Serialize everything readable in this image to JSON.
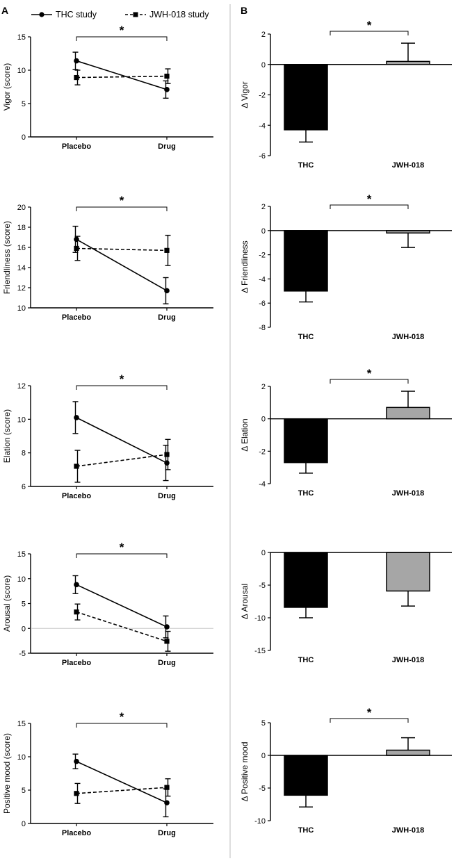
{
  "panel_labels": {
    "a": "A",
    "b": "B"
  },
  "legend": {
    "thc": "THC study",
    "jwh": "JWH-018 study"
  },
  "significance_marker": "*",
  "colors": {
    "thc_bar": "#000000",
    "jwh_bar": "#a6a6a6",
    "divider": "#bdbdbd",
    "zero_line": "#c8c8c8"
  },
  "chart_data": [
    {
      "type": "line",
      "ylabel": "Vigor (score)",
      "categories": [
        "Placebo",
        "Drug"
      ],
      "ylim": [
        0,
        15
      ],
      "yticks": [
        0,
        5,
        10,
        15
      ],
      "series": [
        {
          "name": "THC study",
          "values": [
            11.4,
            7.1
          ],
          "errors": [
            1.3,
            1.3
          ]
        },
        {
          "name": "JWH-018 study",
          "values": [
            8.9,
            9.1
          ],
          "errors": [
            1.1,
            1.1
          ]
        }
      ],
      "significance": "*"
    },
    {
      "type": "line",
      "ylabel": "Friendliness (score)",
      "categories": [
        "Placebo",
        "Drug"
      ],
      "ylim": [
        10,
        20
      ],
      "yticks": [
        10,
        12,
        14,
        16,
        18,
        20
      ],
      "series": [
        {
          "name": "THC study",
          "values": [
            16.8,
            11.7
          ],
          "errors": [
            1.3,
            1.3
          ]
        },
        {
          "name": "JWH-018 study",
          "values": [
            15.9,
            15.7
          ],
          "errors": [
            1.2,
            1.5
          ]
        }
      ],
      "significance": "*"
    },
    {
      "type": "line",
      "ylabel": "Elation (score)",
      "categories": [
        "Placebo",
        "Drug"
      ],
      "ylim": [
        6,
        12
      ],
      "yticks": [
        6,
        8,
        10,
        12
      ],
      "series": [
        {
          "name": "THC study",
          "values": [
            10.1,
            7.4
          ],
          "errors": [
            0.95,
            1.05
          ]
        },
        {
          "name": "JWH-018 study",
          "values": [
            7.2,
            7.9
          ],
          "errors": [
            0.95,
            0.9
          ]
        }
      ],
      "significance": "*"
    },
    {
      "type": "line",
      "ylabel": "Arousal (score)",
      "categories": [
        "Placebo",
        "Drug"
      ],
      "ylim": [
        -5,
        15
      ],
      "yticks": [
        -5,
        0,
        5,
        10,
        15
      ],
      "zero_line": true,
      "series": [
        {
          "name": "THC study",
          "values": [
            8.8,
            0.3
          ],
          "errors": [
            1.8,
            2.2
          ]
        },
        {
          "name": "JWH-018 study",
          "values": [
            3.3,
            -2.6
          ],
          "errors": [
            1.6,
            2.0
          ]
        }
      ],
      "significance": "*"
    },
    {
      "type": "line",
      "ylabel": "Positive mood (score)",
      "categories": [
        "Placebo",
        "Drug"
      ],
      "ylim": [
        0,
        15
      ],
      "yticks": [
        0,
        5,
        10,
        15
      ],
      "series": [
        {
          "name": "THC study",
          "values": [
            9.3,
            3.1
          ],
          "errors": [
            1.1,
            2.1
          ]
        },
        {
          "name": "JWH-018 study",
          "values": [
            4.5,
            5.4
          ],
          "errors": [
            1.5,
            1.3
          ]
        }
      ],
      "significance": "*"
    },
    {
      "type": "bar",
      "ylabel": "Δ Vigor",
      "categories": [
        "THC",
        "JWH-018"
      ],
      "values": [
        -4.3,
        0.2
      ],
      "errors": [
        0.8,
        1.2
      ],
      "ylim": [
        -6,
        2
      ],
      "yticks": [
        -6,
        -4,
        -2,
        0,
        2
      ],
      "significance": "*"
    },
    {
      "type": "bar",
      "ylabel": "Δ Friendliness",
      "categories": [
        "THC",
        "JWH-018"
      ],
      "values": [
        -5.0,
        -0.2
      ],
      "errors": [
        0.9,
        1.2
      ],
      "ylim": [
        -8,
        2
      ],
      "yticks": [
        -8,
        -6,
        -4,
        -2,
        0,
        2
      ],
      "significance": "*"
    },
    {
      "type": "bar",
      "ylabel": "Δ Elation",
      "categories": [
        "THC",
        "JWH-018"
      ],
      "values": [
        -2.7,
        0.7
      ],
      "errors": [
        0.65,
        1.0
      ],
      "ylim": [
        -4,
        2
      ],
      "yticks": [
        -4,
        -2,
        0,
        2
      ],
      "significance": "*"
    },
    {
      "type": "bar",
      "ylabel": "Δ Arousal",
      "categories": [
        "THC",
        "JWH-018"
      ],
      "values": [
        -8.4,
        -5.9
      ],
      "errors": [
        1.6,
        2.3
      ],
      "ylim": [
        -15,
        0
      ],
      "yticks": [
        -15,
        -10,
        -5,
        0
      ],
      "significance": null
    },
    {
      "type": "bar",
      "ylabel": "Δ Positive mood",
      "categories": [
        "THC",
        "JWH-018"
      ],
      "values": [
        -6.1,
        0.8
      ],
      "errors": [
        1.8,
        1.9
      ],
      "ylim": [
        -10,
        5
      ],
      "yticks": [
        -10,
        -5,
        0,
        5
      ],
      "significance": "*"
    }
  ]
}
